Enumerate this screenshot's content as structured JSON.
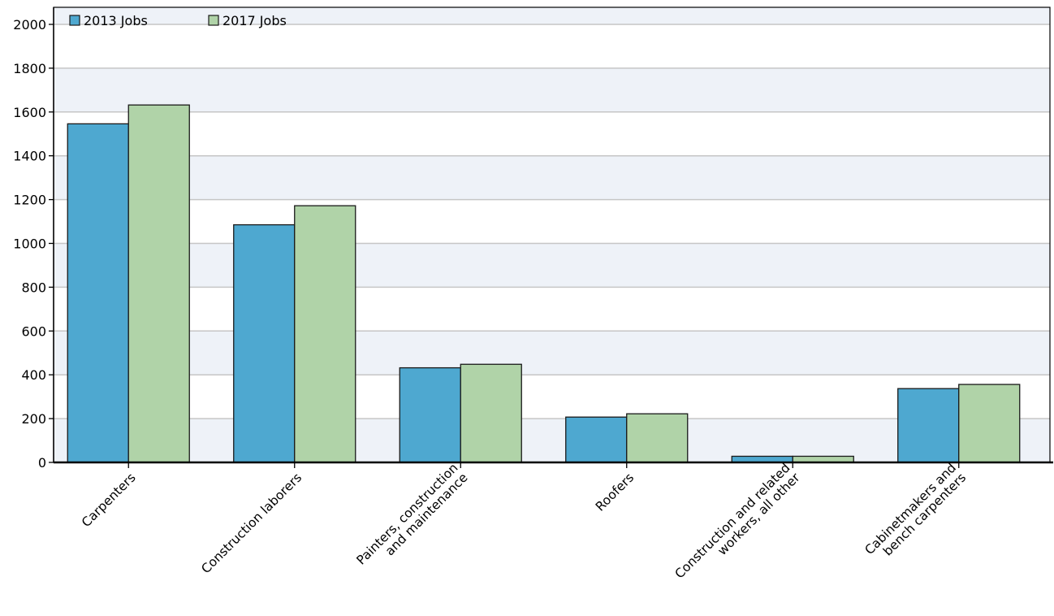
{
  "chart_data": {
    "type": "bar",
    "categories": [
      [
        "Carpenters"
      ],
      [
        "Construction laborers"
      ],
      [
        "Painters, construction",
        "and maintenance"
      ],
      [
        "Roofers"
      ],
      [
        "Construction and related",
        "workers, all other"
      ],
      [
        "Cabinetmakers and",
        "bench carpenters"
      ]
    ],
    "series": [
      {
        "name": "2013 Jobs",
        "color": "#4ea8d0",
        "values": [
          1546,
          1085,
          432,
          207,
          28,
          337
        ]
      },
      {
        "name": "2017 Jobs",
        "color": "#b0d3a8",
        "values": [
          1632,
          1172,
          448,
          222,
          28,
          356
        ]
      }
    ],
    "ylim": [
      0,
      2000
    ],
    "yticks": [
      0,
      200,
      400,
      600,
      800,
      1000,
      1200,
      1400,
      1600,
      1800,
      2000
    ],
    "grid": true,
    "legend_position": "top-left",
    "title": "",
    "xlabel": "",
    "ylabel": ""
  }
}
